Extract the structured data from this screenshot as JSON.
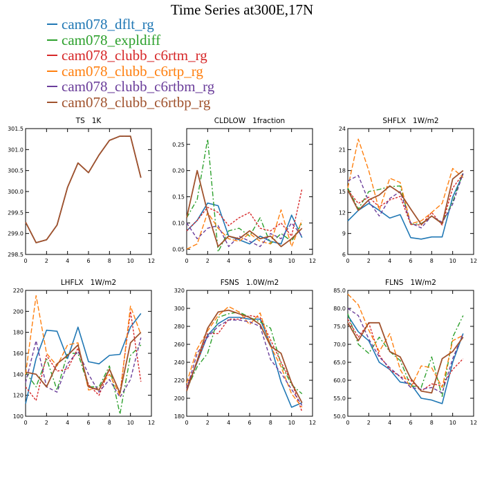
{
  "title": "Time Series at300E,17N",
  "legend": [
    {
      "name": "cam078_dflt_rg",
      "color": "#1f77b4"
    },
    {
      "name": "cam078_expldiff",
      "color": "#2ca02c"
    },
    {
      "name": "cam078_clubb_c6rtm_rg",
      "color": "#d62728"
    },
    {
      "name": "cam078_clubb_c6rtp_rg",
      "color": "#ff7f0e"
    },
    {
      "name": "cam078_clubb_c6rtbm_rg",
      "color": "#6a3d9a"
    },
    {
      "name": "cam078_clubb_c6rtbp_rg",
      "color": "#a0522d"
    }
  ],
  "chart_data": [
    {
      "type": "line",
      "title": "TS   1K",
      "xlim": [
        0,
        12
      ],
      "ylim": [
        298.5,
        301.5
      ],
      "xticks": [
        0,
        2,
        4,
        6,
        8,
        10,
        12
      ],
      "yticks": [
        "298.5",
        "299.0",
        "299.5",
        "300.0",
        "300.5",
        "301.0",
        "301.5"
      ],
      "x": [
        0,
        1,
        2,
        3,
        4,
        5,
        6,
        7,
        8,
        9,
        10,
        11
      ],
      "series": [
        {
          "name": "cam078_dflt_rg",
          "values": [
            299.27,
            298.78,
            298.85,
            299.2,
            300.1,
            300.68,
            300.45,
            300.87,
            301.22,
            301.32,
            301.32,
            300.33
          ]
        },
        {
          "name": "cam078_expldiff",
          "values": [
            299.27,
            298.78,
            298.85,
            299.2,
            300.1,
            300.68,
            300.45,
            300.87,
            301.22,
            301.32,
            301.32,
            300.33
          ]
        },
        {
          "name": "cam078_clubb_c6rtm_rg",
          "values": [
            299.27,
            298.78,
            298.85,
            299.2,
            300.1,
            300.68,
            300.45,
            300.87,
            301.22,
            301.32,
            301.32,
            300.33
          ]
        },
        {
          "name": "cam078_clubb_c6rtp_rg",
          "values": [
            299.27,
            298.78,
            298.85,
            299.2,
            300.1,
            300.68,
            300.45,
            300.87,
            301.22,
            301.32,
            301.32,
            300.33
          ]
        },
        {
          "name": "cam078_clubb_c6rtbm_rg",
          "values": [
            299.27,
            298.78,
            298.85,
            299.2,
            300.1,
            300.68,
            300.45,
            300.87,
            301.22,
            301.32,
            301.32,
            300.33
          ]
        },
        {
          "name": "cam078_clubb_c6rtbp_rg",
          "values": [
            299.27,
            298.78,
            298.85,
            299.2,
            300.1,
            300.68,
            300.45,
            300.87,
            301.22,
            301.32,
            301.32,
            300.33
          ]
        }
      ]
    },
    {
      "type": "line",
      "title": "CLDLOW   1fraction",
      "xlim": [
        0,
        12
      ],
      "ylim": [
        0.04,
        0.28
      ],
      "xticks": [
        0,
        2,
        4,
        6,
        8,
        10,
        12
      ],
      "yticks": [
        "0.05",
        "0.10",
        "0.15",
        "0.20",
        "0.25"
      ],
      "x": [
        0,
        1,
        2,
        3,
        4,
        5,
        6,
        7,
        8,
        9,
        10,
        11
      ],
      "series": [
        {
          "name": "cam078_dflt_rg",
          "values": [
            0.085,
            0.105,
            0.138,
            0.133,
            0.075,
            0.068,
            0.06,
            0.075,
            0.065,
            0.06,
            0.115,
            0.072
          ]
        },
        {
          "name": "cam078_expldiff",
          "values": [
            0.11,
            0.145,
            0.26,
            0.045,
            0.085,
            0.09,
            0.075,
            0.11,
            0.06,
            0.08,
            0.065,
            0.1
          ]
        },
        {
          "name": "cam078_clubb_c6rtm_rg",
          "values": [
            0.085,
            0.105,
            0.13,
            0.12,
            0.095,
            0.11,
            0.12,
            0.09,
            0.085,
            0.1,
            0.075,
            0.165
          ]
        },
        {
          "name": "cam078_clubb_c6rtp_rg",
          "values": [
            0.05,
            0.06,
            0.12,
            0.09,
            0.07,
            0.065,
            0.08,
            0.065,
            0.06,
            0.125,
            0.055,
            0.105
          ]
        },
        {
          "name": "cam078_clubb_c6rtbm_rg",
          "values": [
            0.1,
            0.07,
            0.09,
            0.095,
            0.055,
            0.075,
            0.065,
            0.055,
            0.08,
            0.07,
            0.1,
            0.075
          ]
        },
        {
          "name": "cam078_clubb_c6rtbp_rg",
          "values": [
            0.11,
            0.2,
            0.12,
            0.055,
            0.075,
            0.07,
            0.085,
            0.07,
            0.075,
            0.055,
            0.07,
            0.09
          ]
        }
      ]
    },
    {
      "type": "line",
      "title": "SHFLX   1W/m2",
      "xlim": [
        0,
        12
      ],
      "ylim": [
        6,
        24
      ],
      "xticks": [
        0,
        2,
        4,
        6,
        8,
        10,
        12
      ],
      "yticks": [
        "6",
        "9",
        "12",
        "15",
        "18",
        "21",
        "24"
      ],
      "x": [
        0,
        1,
        2,
        3,
        4,
        5,
        6,
        7,
        8,
        9,
        10,
        11
      ],
      "series": [
        {
          "name": "cam078_dflt_rg",
          "values": [
            10.8,
            12.3,
            13.3,
            12.3,
            11.2,
            11.7,
            8.4,
            8.2,
            8.5,
            8.5,
            14.2,
            17.5
          ]
        },
        {
          "name": "cam078_expldiff",
          "values": [
            15.5,
            12.5,
            15.0,
            15.3,
            15.7,
            15.8,
            10.3,
            10.4,
            11.5,
            10.5,
            13.5,
            17.8
          ]
        },
        {
          "name": "cam078_clubb_c6rtm_rg",
          "values": [
            15.2,
            13.3,
            14.2,
            12.8,
            13.8,
            14.3,
            10.3,
            10.2,
            12.0,
            10.2,
            15.5,
            17.5
          ]
        },
        {
          "name": "cam078_clubb_c6rtp_rg",
          "values": [
            15.5,
            22.5,
            18.0,
            12.3,
            16.9,
            16.3,
            10.4,
            10.8,
            12.0,
            13.3,
            18.3,
            17.0
          ]
        },
        {
          "name": "cam078_clubb_c6rtbm_rg",
          "values": [
            16.5,
            17.3,
            13.6,
            11.5,
            14.0,
            15.0,
            10.5,
            9.8,
            11.5,
            10.6,
            13.2,
            17.6
          ]
        },
        {
          "name": "cam078_clubb_c6rtbp_rg",
          "values": [
            15.2,
            12.3,
            13.8,
            14.5,
            15.8,
            14.8,
            12.5,
            10.3,
            11.5,
            10.4,
            16.8,
            18.0
          ]
        }
      ]
    },
    {
      "type": "line",
      "title": "LHFLX   1W/m2",
      "xlim": [
        0,
        12
      ],
      "ylim": [
        100,
        220
      ],
      "xticks": [
        0,
        2,
        4,
        6,
        8,
        10,
        12
      ],
      "yticks": [
        "100",
        "120",
        "140",
        "160",
        "180",
        "200",
        "220"
      ],
      "x": [
        0,
        1,
        2,
        3,
        4,
        5,
        6,
        7,
        8,
        9,
        10,
        11
      ],
      "series": [
        {
          "name": "cam078_dflt_rg",
          "values": [
            112,
            155,
            182,
            181,
            155,
            185,
            152,
            150,
            158,
            159,
            185,
            198
          ]
        },
        {
          "name": "cam078_expldiff",
          "values": [
            142,
            128,
            155,
            125,
            160,
            160,
            128,
            128,
            148,
            102,
            158,
            168
          ]
        },
        {
          "name": "cam078_clubb_c6rtm_rg",
          "values": [
            128,
            115,
            158,
            143,
            145,
            165,
            130,
            120,
            145,
            122,
            200,
            133
          ]
        },
        {
          "name": "cam078_clubb_c6rtp_rg",
          "values": [
            140,
            215,
            160,
            148,
            168,
            170,
            125,
            127,
            140,
            120,
            205,
            178
          ]
        },
        {
          "name": "cam078_clubb_c6rtbm_rg",
          "values": [
            132,
            172,
            128,
            123,
            150,
            162,
            140,
            123,
            135,
            118,
            135,
            175
          ]
        },
        {
          "name": "cam078_clubb_c6rtbp_rg",
          "values": [
            142,
            140,
            128,
            150,
            158,
            168,
            128,
            125,
            145,
            122,
            170,
            180
          ]
        }
      ]
    },
    {
      "type": "line",
      "title": "FSNS   1.0W/m2",
      "xlim": [
        0,
        12
      ],
      "ylim": [
        180,
        320
      ],
      "xticks": [
        0,
        2,
        4,
        6,
        8,
        10,
        12
      ],
      "yticks": [
        "180",
        "200",
        "220",
        "240",
        "260",
        "280",
        "300",
        "320"
      ],
      "x": [
        0,
        1,
        2,
        3,
        4,
        5,
        6,
        7,
        8,
        9,
        10,
        11
      ],
      "series": [
        {
          "name": "cam078_dflt_rg",
          "values": [
            210,
            240,
            270,
            283,
            290,
            290,
            288,
            288,
            260,
            218,
            190,
            195
          ]
        },
        {
          "name": "cam078_expldiff",
          "values": [
            210,
            235,
            250,
            290,
            294,
            296,
            290,
            285,
            278,
            238,
            215,
            205
          ]
        },
        {
          "name": "cam078_clubb_c6rtm_rg",
          "values": [
            213,
            240,
            272,
            272,
            288,
            288,
            292,
            290,
            265,
            240,
            218,
            185
          ]
        },
        {
          "name": "cam078_clubb_c6rtp_rg",
          "values": [
            217,
            255,
            275,
            292,
            302,
            296,
            282,
            295,
            258,
            235,
            205,
            190
          ]
        },
        {
          "name": "cam078_clubb_c6rtbm_rg",
          "values": [
            210,
            250,
            268,
            280,
            287,
            287,
            285,
            280,
            243,
            228,
            210,
            192
          ]
        },
        {
          "name": "cam078_clubb_c6rtbp_rg",
          "values": [
            208,
            242,
            278,
            296,
            298,
            294,
            290,
            282,
            258,
            250,
            217,
            195
          ]
        }
      ]
    },
    {
      "type": "line",
      "title": "FLNS   1W/m2",
      "xlim": [
        0,
        12
      ],
      "ylim": [
        50,
        85
      ],
      "xticks": [
        0,
        2,
        4,
        6,
        8,
        10,
        12
      ],
      "yticks": [
        "50.0",
        "55.0",
        "60.0",
        "65.0",
        "70.0",
        "75.0",
        "80.0",
        "85.0"
      ],
      "x": [
        0,
        1,
        2,
        3,
        4,
        5,
        6,
        7,
        8,
        9,
        10,
        11
      ],
      "series": [
        {
          "name": "cam078_dflt_rg",
          "values": [
            78.0,
            73.5,
            71.0,
            65.0,
            63.0,
            59.5,
            59.0,
            55.0,
            54.5,
            53.5,
            65.0,
            73.0
          ]
        },
        {
          "name": "cam078_expldiff",
          "values": [
            78.5,
            70.0,
            67.5,
            72.0,
            68.0,
            65.5,
            58.5,
            58.0,
            66.5,
            55.5,
            72.0,
            78.0
          ]
        },
        {
          "name": "cam078_clubb_c6rtm_rg",
          "values": [
            77.0,
            72.0,
            76.0,
            67.0,
            63.0,
            61.0,
            60.0,
            57.0,
            59.0,
            58.5,
            63.0,
            66.0
          ]
        },
        {
          "name": "cam078_clubb_c6rtp_rg",
          "values": [
            84.0,
            81.0,
            74.0,
            68.0,
            73.0,
            63.0,
            58.0,
            64.0,
            63.5,
            58.0,
            71.0,
            72.5
          ]
        },
        {
          "name": "cam078_clubb_c6rtbm_rg",
          "values": [
            80.0,
            78.0,
            71.5,
            66.5,
            63.5,
            61.0,
            58.0,
            57.5,
            58.0,
            56.5,
            66.0,
            73.0
          ]
        },
        {
          "name": "cam078_clubb_c6rtbp_rg",
          "values": [
            76.0,
            71.0,
            76.0,
            76.0,
            68.0,
            66.5,
            60.5,
            57.0,
            56.5,
            66.0,
            68.0,
            72.0
          ]
        }
      ]
    }
  ]
}
